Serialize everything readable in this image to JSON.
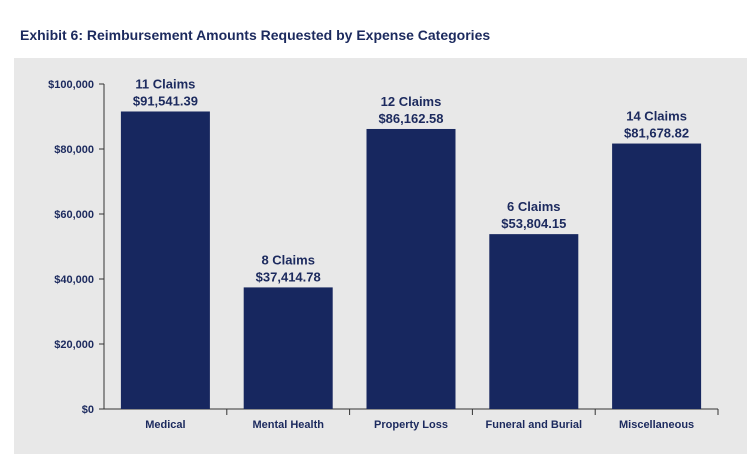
{
  "title": "Exhibit 6: Reimbursement Amounts Requested by Expense Categories",
  "colors": {
    "bar": "#17275f",
    "axis": "#333333",
    "text": "#1c2a5e",
    "panel": "#e8e8e8"
  },
  "chart_data": {
    "type": "bar",
    "title": "Exhibit 6: Reimbursement Amounts Requested by Expense Categories",
    "xlabel": "",
    "ylabel": "",
    "categories": [
      "Medical",
      "Mental Health",
      "Property Loss",
      "Funeral and Burial",
      "Miscellaneous"
    ],
    "values": [
      91541.39,
      37414.78,
      86162.58,
      53804.15,
      81678.82
    ],
    "claims_labels": [
      "11 Claims",
      "8 Claims",
      "12 Claims",
      "6 Claims",
      "14 Claims"
    ],
    "value_labels": [
      "$91,541.39",
      "$37,414.78",
      "$86,162.58",
      "$53,804.15",
      "$81,678.82"
    ],
    "ylim": [
      0,
      100000
    ],
    "yticks": [
      0,
      20000,
      40000,
      60000,
      80000,
      100000
    ],
    "ytick_labels": [
      "$0",
      "$20,000",
      "$40,000",
      "$60,000",
      "$80,000",
      "$100,000"
    ],
    "grid": false,
    "legend": "none"
  }
}
